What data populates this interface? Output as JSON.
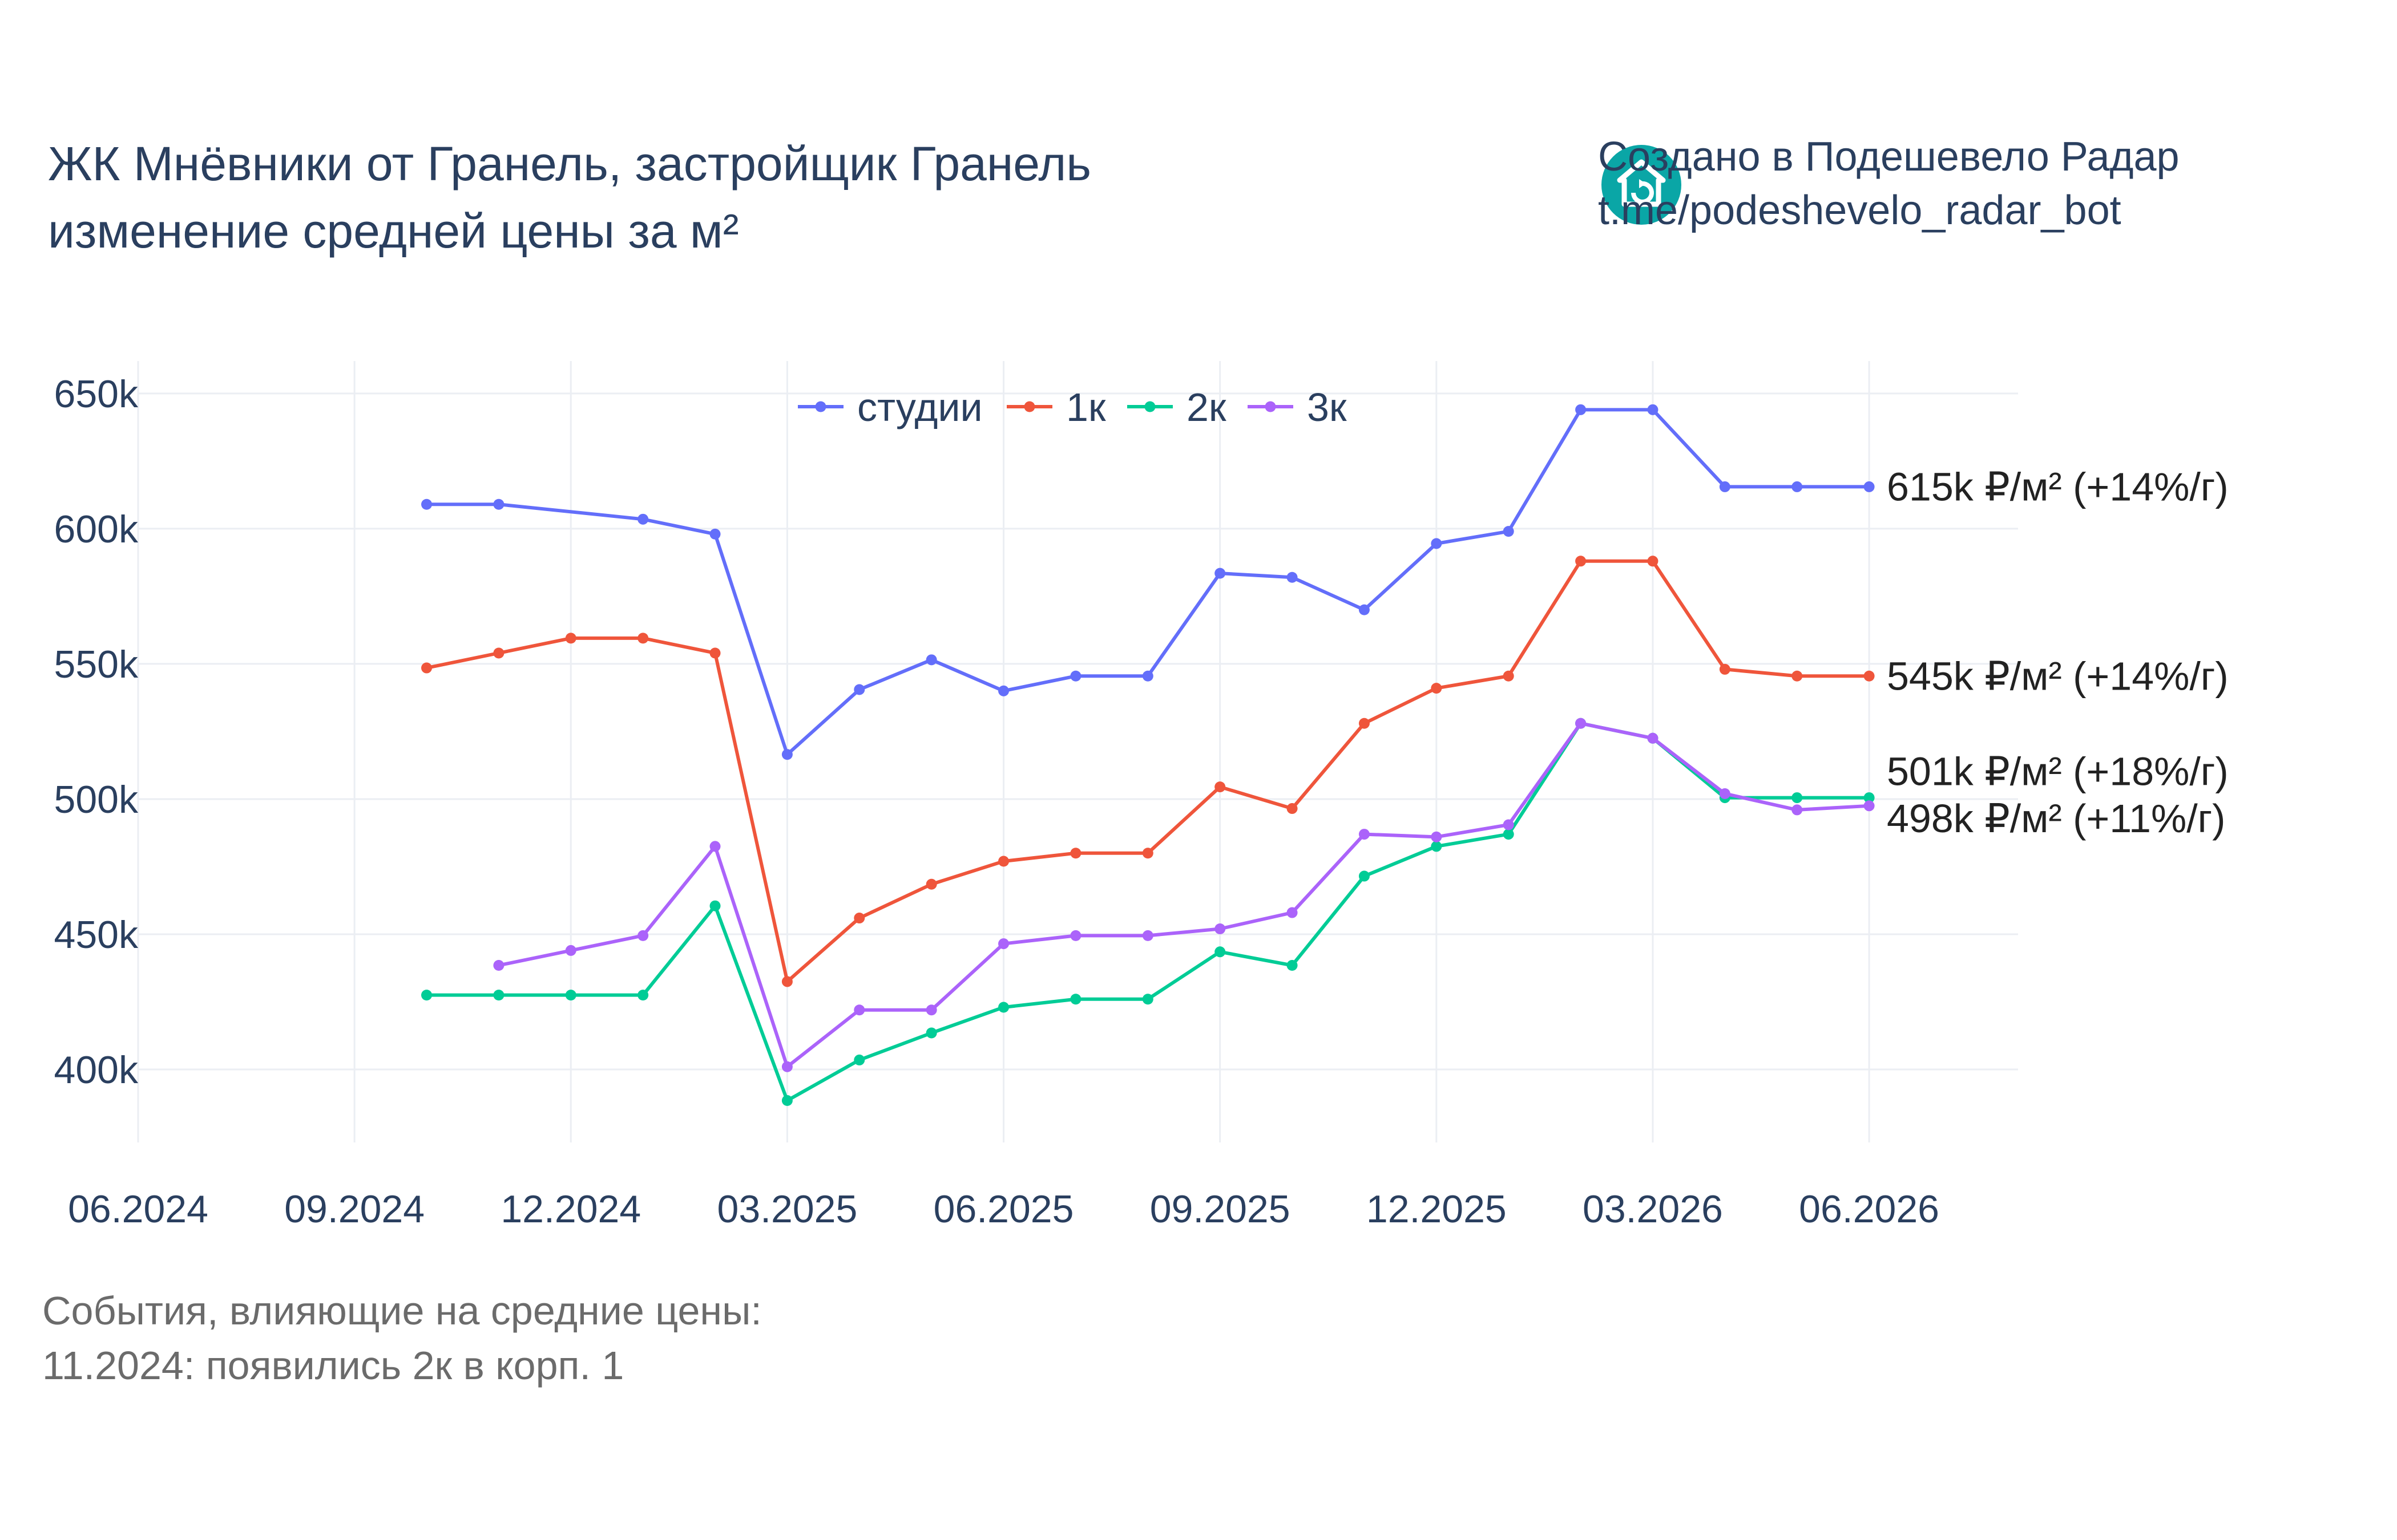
{
  "title": {
    "line1": "ЖК Мнёвники от Гранель, застройщик Гранель",
    "line2": "изменение средней цены за м²"
  },
  "brand": {
    "line1": "Создано в Подешевело Радар",
    "line2": "t.me/podeshevelo_radar_bot",
    "logo_icon": "house-logo-icon"
  },
  "events": {
    "heading": "События, влияющие на средние цены:",
    "items": [
      "11.2024: появились 2к в корп. 1"
    ]
  },
  "chart_data": {
    "type": "line",
    "x_ticks": [
      "06.2024",
      "09.2024",
      "12.2024",
      "03.2025",
      "06.2025",
      "09.2025",
      "12.2025",
      "03.2026",
      "06.2026"
    ],
    "y_ticks": [
      "400k",
      "450k",
      "500k",
      "550k",
      "600k",
      "650k"
    ],
    "y_tick_values": [
      400000,
      450000,
      500000,
      550000,
      600000,
      650000
    ],
    "xlim": [
      "2024-06",
      "2026-08-03"
    ],
    "ylim": [
      373000,
      662000
    ],
    "grid": true,
    "legend_position": "top-center",
    "series": [
      {
        "name": "студии",
        "color": "#636efa",
        "x": [
          "2024-10",
          "2024-11",
          "2025-01",
          "2025-02",
          "2025-03",
          "2025-04",
          "2025-05",
          "2025-06",
          "2025-07",
          "2025-08",
          "2025-09",
          "2025-10",
          "2025-11",
          "2025-12",
          "2026-01",
          "2026-02",
          "2026-03",
          "2026-04",
          "2026-05",
          "2026-06"
        ],
        "y": [
          609000,
          609000,
          603500,
          598000,
          516500,
          540500,
          551500,
          540000,
          545500,
          545500,
          583500,
          582000,
          570000,
          594500,
          599000,
          644000,
          644000,
          615500,
          615500,
          615500
        ],
        "end_label": "615k ₽/м² (+14%/г)"
      },
      {
        "name": "1к",
        "color": "#ef553b",
        "x": [
          "2024-10",
          "2024-11",
          "2024-12",
          "2025-01",
          "2025-02",
          "2025-03",
          "2025-04",
          "2025-05",
          "2025-06",
          "2025-07",
          "2025-08",
          "2025-09",
          "2025-10",
          "2025-11",
          "2025-12",
          "2026-01",
          "2026-02",
          "2026-03",
          "2026-04",
          "2026-05",
          "2026-06"
        ],
        "y": [
          548500,
          554000,
          559500,
          559500,
          554000,
          432500,
          456000,
          468500,
          477000,
          480000,
          480000,
          504500,
          496500,
          528000,
          541000,
          545500,
          588000,
          588000,
          548000,
          545500,
          545500
        ],
        "end_label": "545k ₽/м² (+14%/г)"
      },
      {
        "name": "2к",
        "color": "#00cc96",
        "x": [
          "2024-10",
          "2024-11",
          "2024-12",
          "2025-01",
          "2025-02",
          "2025-03",
          "2025-04",
          "2025-05",
          "2025-06",
          "2025-07",
          "2025-08",
          "2025-09",
          "2025-10",
          "2025-11",
          "2025-12",
          "2026-01",
          "2026-02",
          "2026-03",
          "2026-04",
          "2026-05",
          "2026-06"
        ],
        "y": [
          427500,
          427500,
          427500,
          427500,
          460500,
          388500,
          403500,
          413500,
          423000,
          426000,
          426000,
          443500,
          438500,
          471500,
          482500,
          487000,
          528000,
          522500,
          500500,
          500500,
          500500
        ],
        "end_label": "501k ₽/м² (+18%/г)"
      },
      {
        "name": "3к",
        "color": "#ab63fa",
        "x": [
          "2024-11",
          "2024-12",
          "2025-01",
          "2025-02",
          "2025-03",
          "2025-04",
          "2025-05",
          "2025-06",
          "2025-07",
          "2025-08",
          "2025-09",
          "2025-10",
          "2025-11",
          "2025-12",
          "2026-01",
          "2026-02",
          "2026-03",
          "2026-04",
          "2026-05",
          "2026-06"
        ],
        "y": [
          438500,
          444000,
          449500,
          482500,
          401000,
          422000,
          422000,
          446500,
          449500,
          449500,
          452000,
          458000,
          487000,
          486000,
          490500,
          528000,
          522500,
          502000,
          496000,
          497500
        ],
        "end_label": "498k ₽/м² (+11%/г)"
      }
    ]
  }
}
